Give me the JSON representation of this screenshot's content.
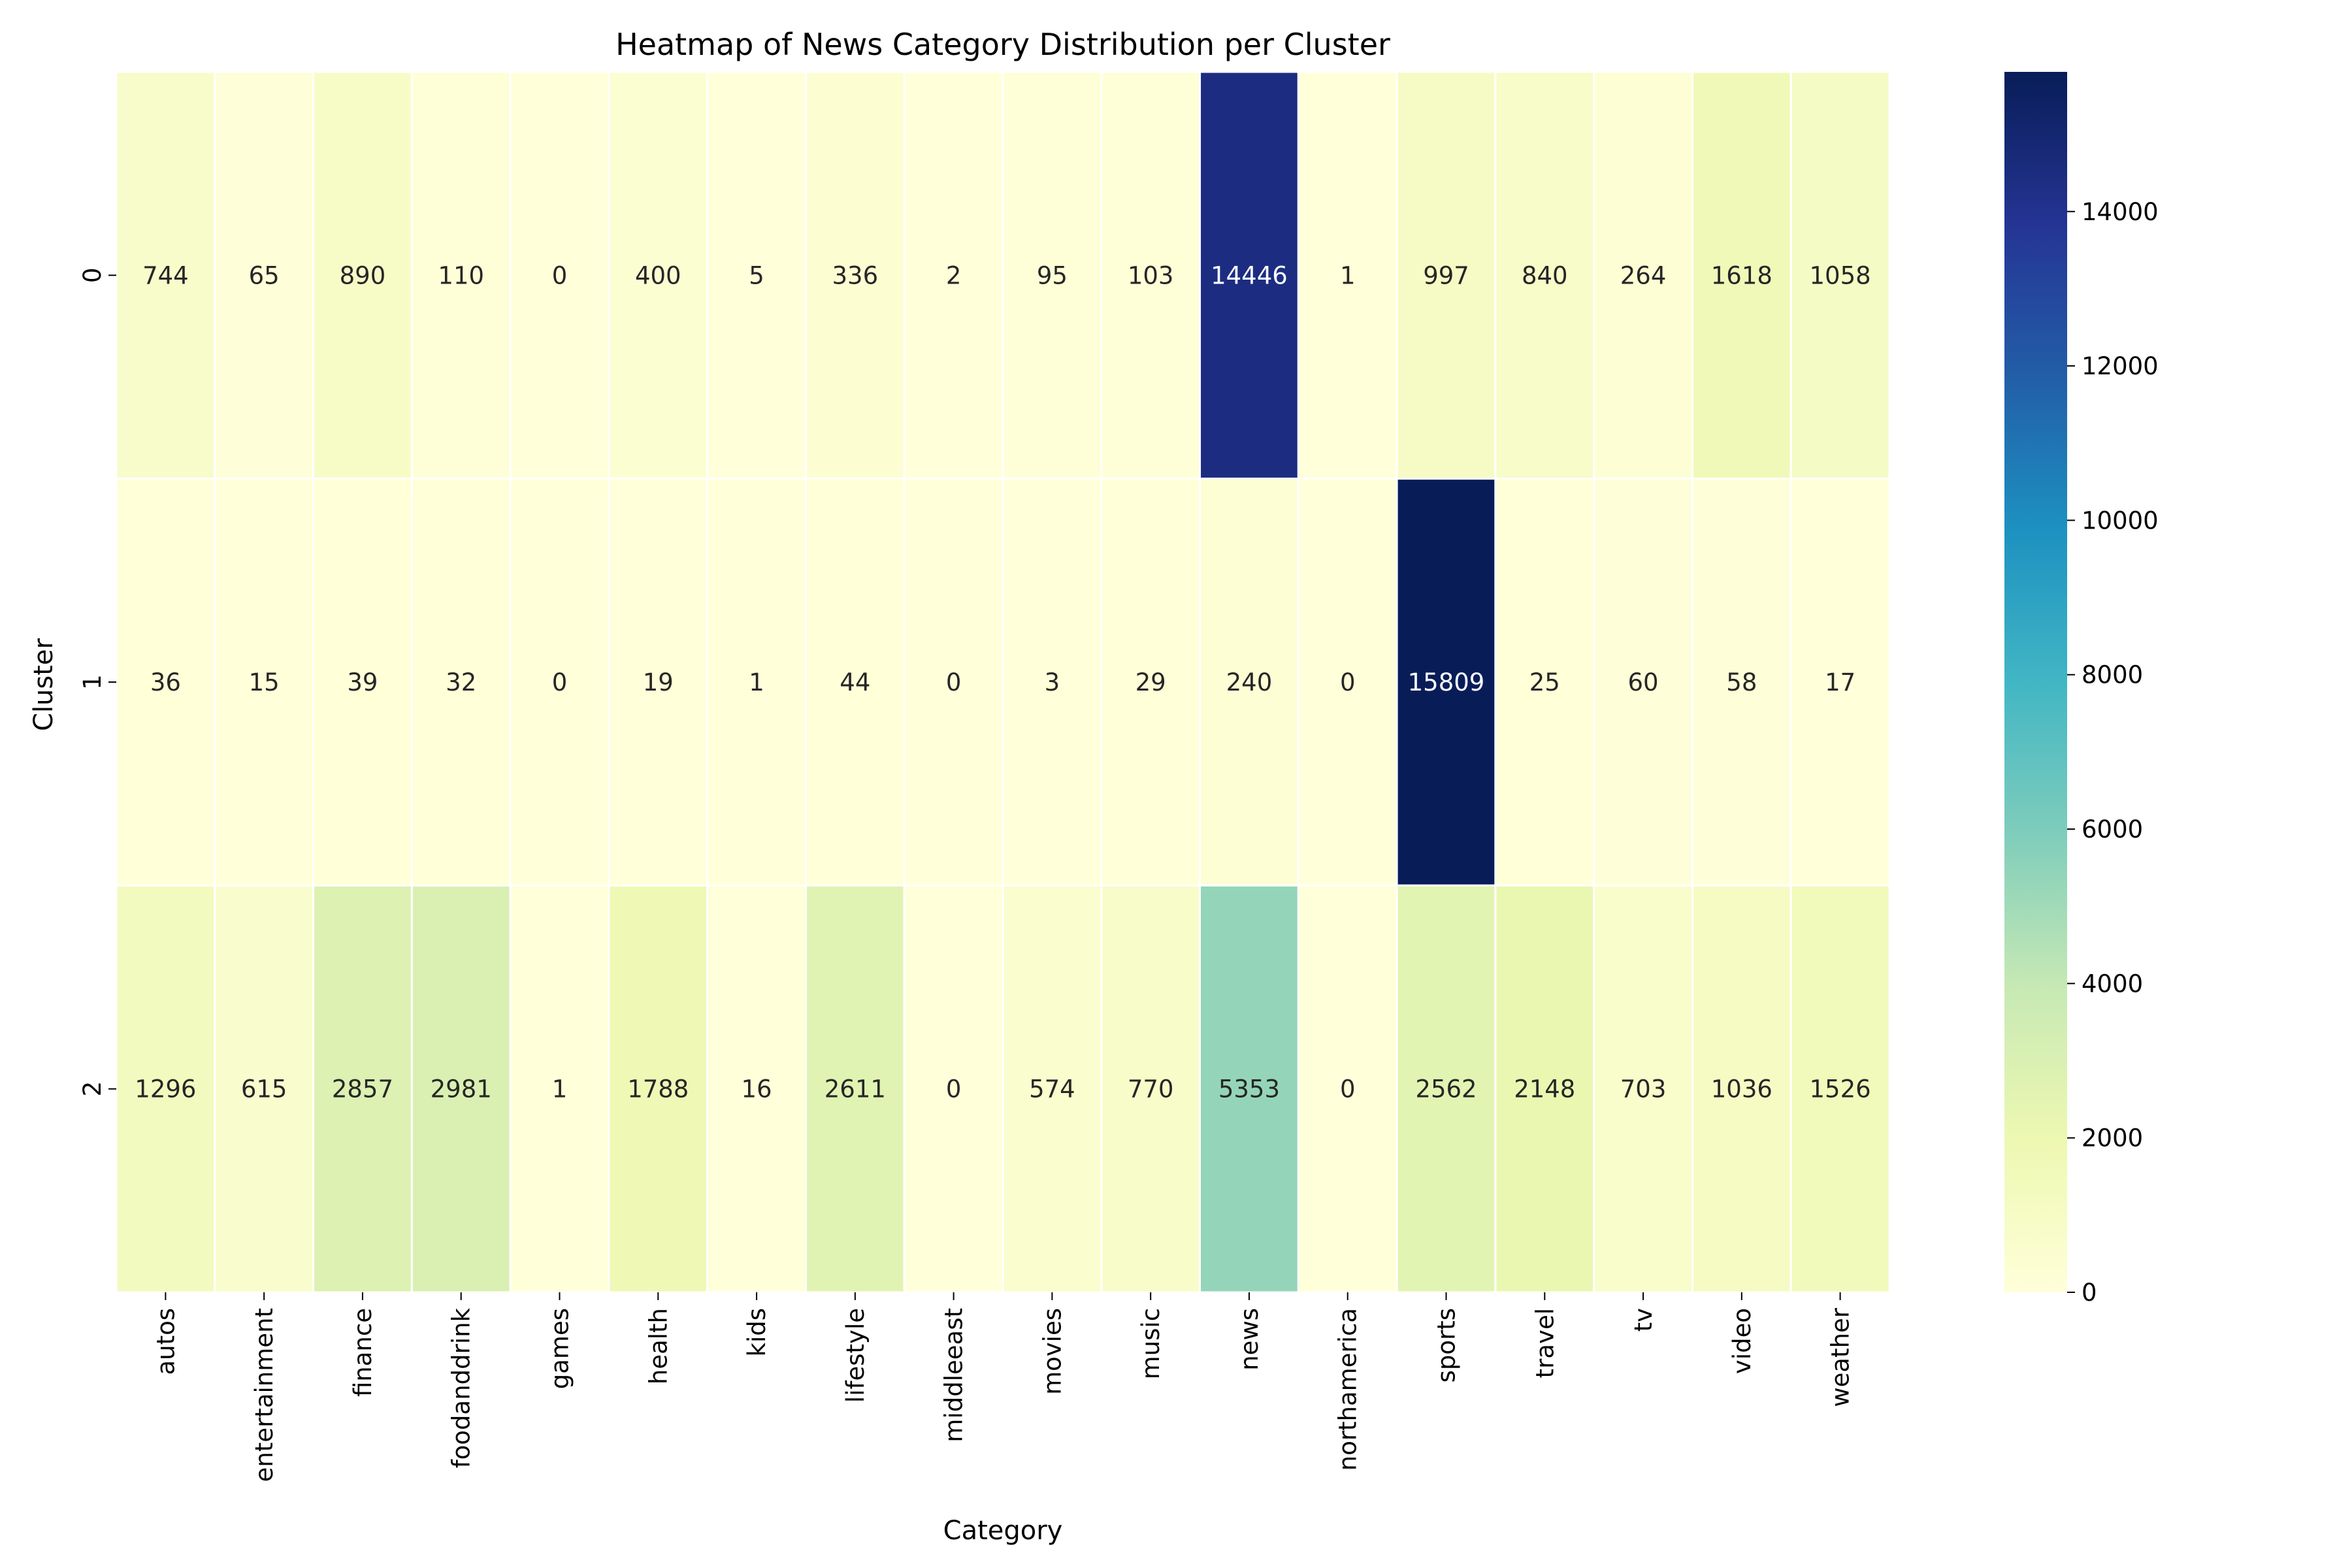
{
  "chart_data": {
    "type": "heatmap",
    "title": "Heatmap of News Category Distribution per Cluster",
    "xlabel": "Category",
    "ylabel": "Cluster",
    "x": [
      "autos",
      "entertainment",
      "finance",
      "foodanddrink",
      "games",
      "health",
      "kids",
      "lifestyle",
      "middleeast",
      "movies",
      "music",
      "news",
      "northamerica",
      "sports",
      "travel",
      "tv",
      "video",
      "weather"
    ],
    "y": [
      "0",
      "1",
      "2"
    ],
    "values": [
      [
        744,
        65,
        890,
        110,
        0,
        400,
        5,
        336,
        2,
        95,
        103,
        14446,
        1,
        997,
        840,
        264,
        1618,
        1058
      ],
      [
        36,
        15,
        39,
        32,
        0,
        19,
        1,
        44,
        0,
        3,
        29,
        240,
        0,
        15809,
        25,
        60,
        58,
        17
      ],
      [
        1296,
        615,
        2857,
        2981,
        1,
        1788,
        16,
        2611,
        0,
        574,
        770,
        5353,
        0,
        2562,
        2148,
        703,
        1036,
        1526
      ]
    ],
    "colormap": "YlGnBu",
    "vmin": 0,
    "vmax": 15809,
    "colorbar_ticks": [
      0,
      2000,
      4000,
      6000,
      8000,
      10000,
      12000,
      14000
    ],
    "annotations": true
  }
}
